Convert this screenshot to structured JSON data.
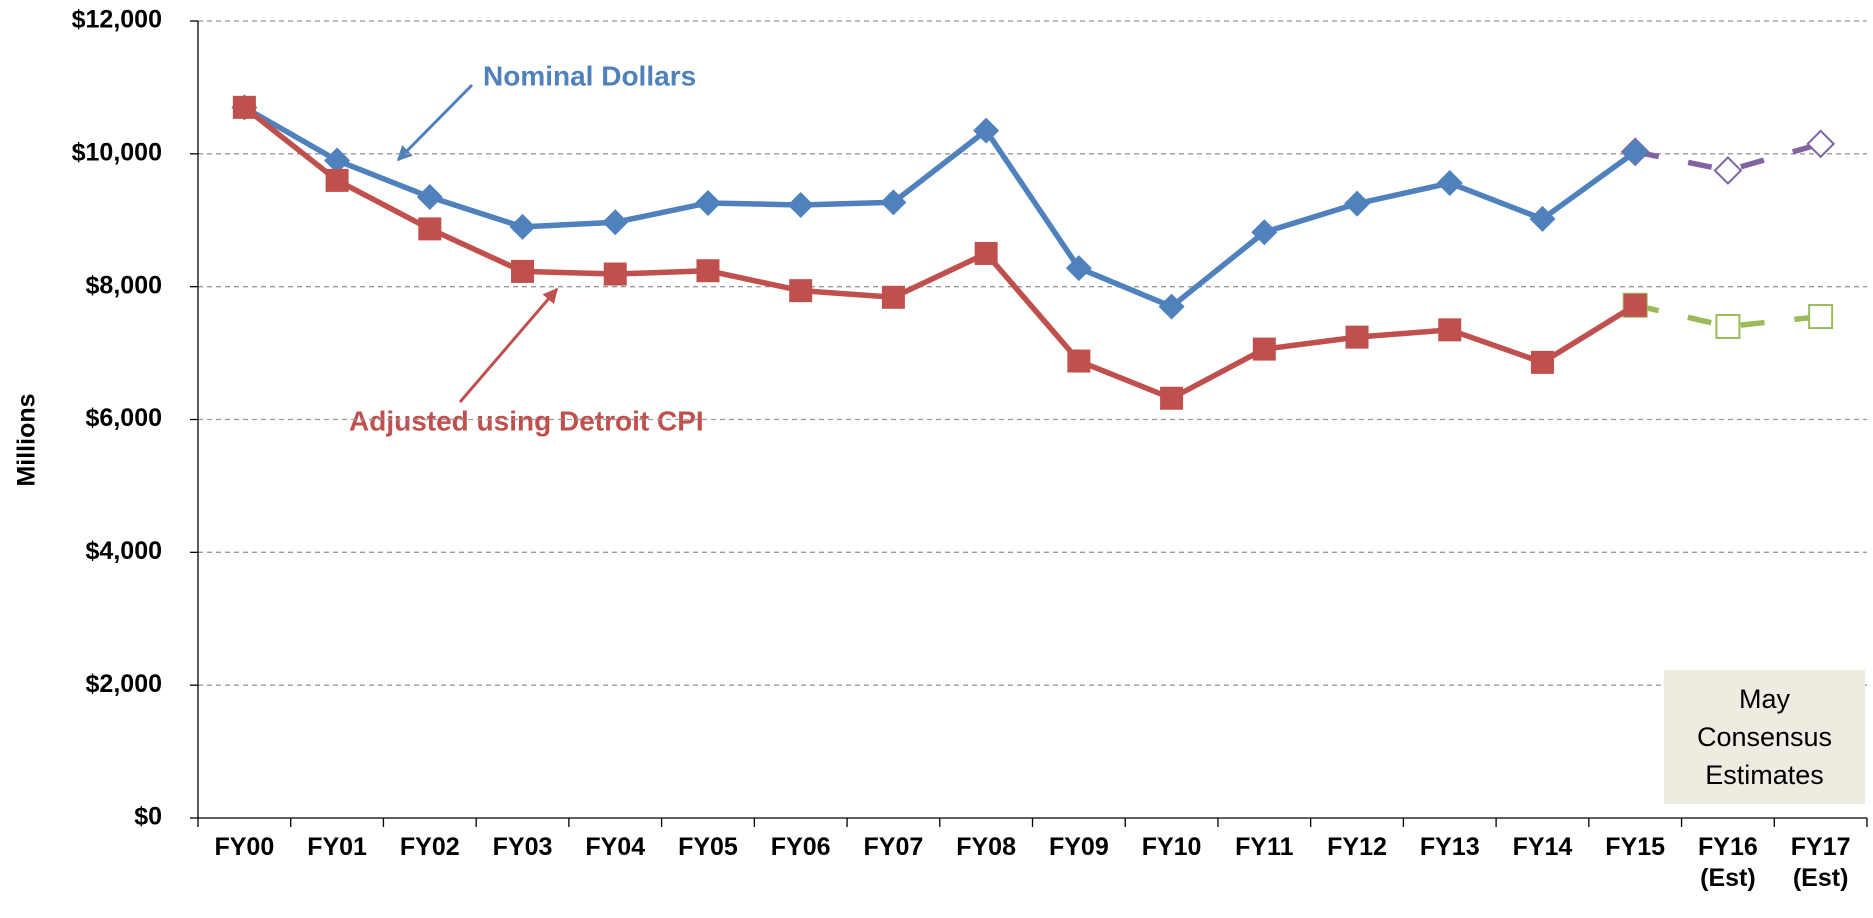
{
  "chart_data": {
    "type": "line",
    "y_label": "Millions",
    "categories": [
      "FY00",
      "FY01",
      "FY02",
      "FY03",
      "FY04",
      "FY05",
      "FY06",
      "FY07",
      "FY08",
      "FY09",
      "FY10",
      "FY11",
      "FY12",
      "FY13",
      "FY14",
      "FY15",
      "FY16\n(Est)",
      "FY17\n(Est)"
    ],
    "series": [
      {
        "color": "#8064a2",
        "marker": "diamond",
        "filled": false,
        "dashed": true,
        "values": [
          null,
          null,
          null,
          null,
          null,
          null,
          null,
          null,
          null,
          null,
          null,
          null,
          null,
          null,
          null,
          10030,
          9750,
          10150
        ]
      },
      {
        "color": "#9bbb59",
        "marker": "square",
        "filled": false,
        "dashed": true,
        "values": [
          null,
          null,
          null,
          null,
          null,
          null,
          null,
          null,
          null,
          null,
          null,
          null,
          null,
          null,
          null,
          7720,
          7400,
          7550
        ]
      },
      {
        "name": "Nominal Dollars",
        "color": "#4f81bd",
        "marker": "diamond",
        "filled": true,
        "dashed": false,
        "values": [
          10700,
          9900,
          9350,
          8900,
          8970,
          9260,
          9230,
          9270,
          10350,
          8280,
          7700,
          8820,
          9250,
          9560,
          9020,
          10030,
          null,
          null
        ]
      },
      {
        "name": "Adjusted using Detroit CPI",
        "color": "#c0504d",
        "marker": "square",
        "filled": true,
        "dashed": false,
        "values": [
          10700,
          9600,
          8870,
          8230,
          8190,
          8240,
          7940,
          7840,
          8500,
          6880,
          6320,
          7060,
          7240,
          7350,
          6860,
          7720,
          null,
          null
        ]
      }
    ],
    "ylim": [
      0,
      12000
    ],
    "yticks": [
      {
        "value": 0,
        "label": "$0"
      },
      {
        "value": 2000,
        "label": "$2,000"
      },
      {
        "value": 4000,
        "label": "$4,000"
      },
      {
        "value": 6000,
        "label": "$6,000"
      },
      {
        "value": 8000,
        "label": "$8,000"
      },
      {
        "value": 10000,
        "label": "$10,000"
      },
      {
        "value": 12000,
        "label": "$12,000"
      }
    ],
    "grid": true,
    "annotation": "May Consensus Estimates"
  }
}
